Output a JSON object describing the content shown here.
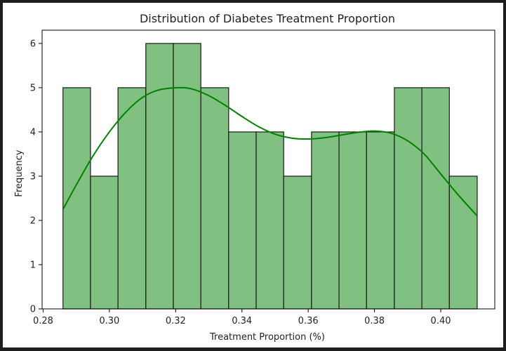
{
  "chart_data": {
    "type": "histogram",
    "title": "Distribution of Diabetes Treatment Proportion",
    "xlabel": "Treatment Proportion (%)",
    "ylabel": "Frequency",
    "xlim": [
      0.2797,
      0.4163
    ],
    "ylim": [
      0,
      6.3
    ],
    "x_ticks": [
      0.28,
      0.3,
      0.32,
      0.34,
      0.36,
      0.38,
      0.4
    ],
    "x_tick_labels": [
      "0.28",
      "0.30",
      "0.32",
      "0.34",
      "0.36",
      "0.38",
      "0.40"
    ],
    "y_ticks": [
      0,
      1,
      2,
      3,
      4,
      5,
      6
    ],
    "y_tick_labels": [
      "0",
      "1",
      "2",
      "3",
      "4",
      "5",
      "6"
    ],
    "bins": [
      {
        "x0": 0.286,
        "x1": 0.2943,
        "count": 5
      },
      {
        "x0": 0.2943,
        "x1": 0.3026,
        "count": 3
      },
      {
        "x0": 0.3026,
        "x1": 0.311,
        "count": 5
      },
      {
        "x0": 0.311,
        "x1": 0.3193,
        "count": 6
      },
      {
        "x0": 0.3193,
        "x1": 0.3276,
        "count": 6
      },
      {
        "x0": 0.3276,
        "x1": 0.336,
        "count": 5
      },
      {
        "x0": 0.336,
        "x1": 0.3443,
        "count": 4
      },
      {
        "x0": 0.3443,
        "x1": 0.3526,
        "count": 4
      },
      {
        "x0": 0.3526,
        "x1": 0.361,
        "count": 3
      },
      {
        "x0": 0.361,
        "x1": 0.3693,
        "count": 4
      },
      {
        "x0": 0.3693,
        "x1": 0.3776,
        "count": 4
      },
      {
        "x0": 0.3776,
        "x1": 0.386,
        "count": 4
      },
      {
        "x0": 0.386,
        "x1": 0.3943,
        "count": 5
      },
      {
        "x0": 0.3943,
        "x1": 0.4026,
        "count": 5
      },
      {
        "x0": 0.4026,
        "x1": 0.411,
        "count": 3
      }
    ],
    "kde": {
      "x": [
        0.286,
        0.29,
        0.295,
        0.3,
        0.305,
        0.31,
        0.315,
        0.321,
        0.325,
        0.33,
        0.335,
        0.34,
        0.345,
        0.35,
        0.355,
        0.36,
        0.365,
        0.37,
        0.375,
        0.38,
        0.385,
        0.39,
        0.395,
        0.4,
        0.405,
        0.411
      ],
      "y": [
        2.25,
        2.8,
        3.45,
        4.0,
        4.45,
        4.78,
        4.95,
        5.0,
        4.97,
        4.82,
        4.6,
        4.35,
        4.12,
        3.95,
        3.86,
        3.84,
        3.87,
        3.93,
        3.99,
        4.02,
        3.97,
        3.8,
        3.5,
        3.05,
        2.6,
        2.1
      ]
    },
    "colors": {
      "bar_fill": "#80c080",
      "bar_edge": "#1a1a1a",
      "kde_line": "#008000",
      "axis": "#000000"
    },
    "grid": false,
    "legend": "none"
  }
}
